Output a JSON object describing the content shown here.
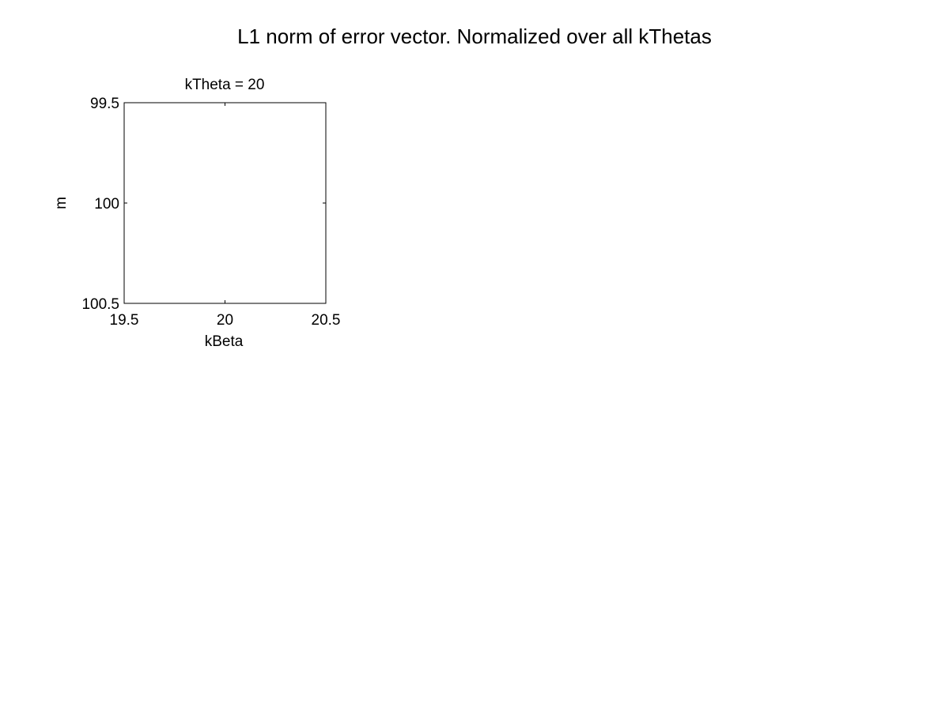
{
  "figure": {
    "suptitle": "L1 norm of error vector. Normalized over all kThetas"
  },
  "chart_data": {
    "type": "heatmap",
    "title": "kTheta = 20",
    "xlabel": "kBeta",
    "ylabel": "m",
    "x": [
      20
    ],
    "y": [
      100
    ],
    "xlim": [
      19.5,
      20.5
    ],
    "ylim": [
      99.5,
      100.5
    ],
    "y_axis_direction": "reversed",
    "xticks": [
      "19.5",
      "20",
      "20.5"
    ],
    "yticks": [
      "99.5",
      "100",
      "100.5"
    ],
    "grid": false,
    "legend": "none",
    "colors": {
      "background": "#ffffff",
      "axes": "#000000",
      "cell": "#ffffff"
    }
  }
}
